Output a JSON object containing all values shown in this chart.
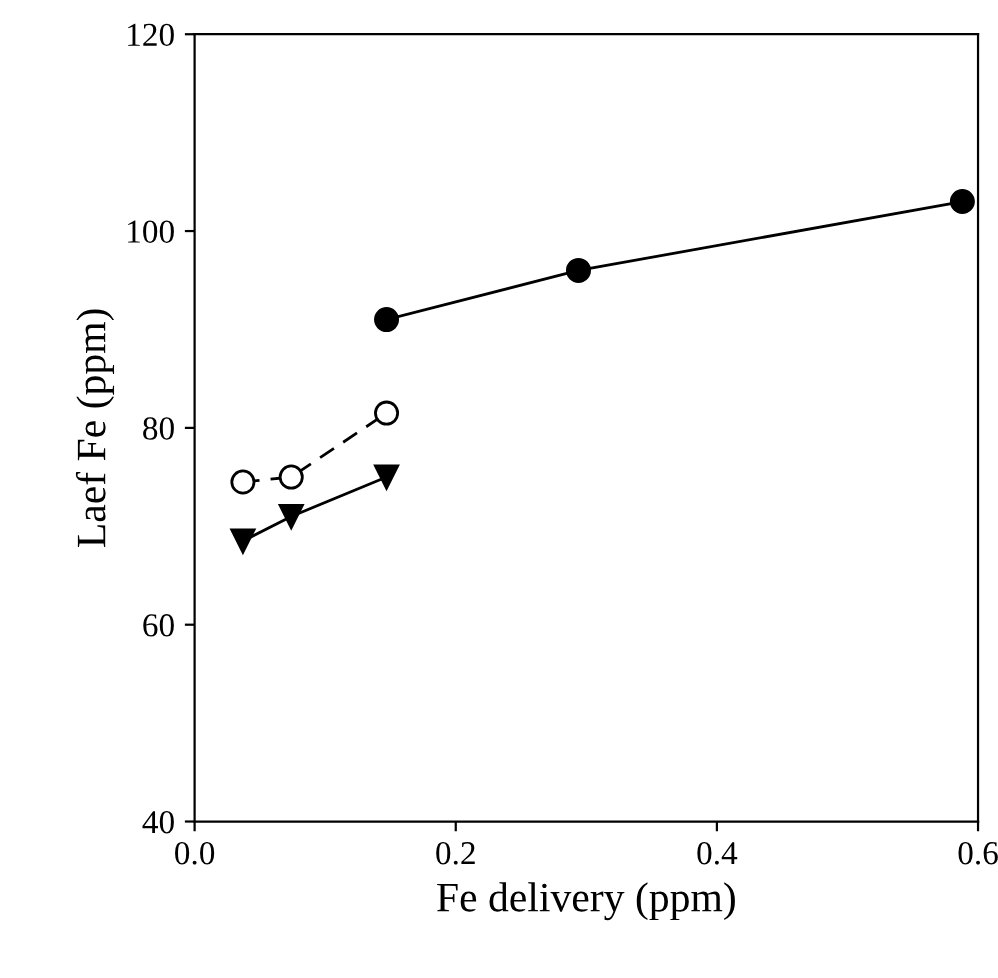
{
  "chart_data": {
    "type": "line",
    "xlabel": "Fe delivery (ppm)",
    "ylabel": "Laef Fe (ppm)",
    "xlim": [
      0,
      0.6
    ],
    "xticks": [
      {
        "value": 0,
        "label": "0.0"
      },
      0.2,
      0.4,
      0.6
    ],
    "ylim": [
      40,
      120
    ],
    "yticks": [
      40,
      60,
      80,
      100,
      120
    ],
    "grid": false,
    "legend": false,
    "series": [
      {
        "x": [
          0.147,
          0.294,
          0.588
        ],
        "values": [
          91,
          96,
          103
        ],
        "color": "#000000",
        "marker": "circle",
        "line_style": "solid"
      },
      {
        "x": [
          0.037,
          0.074,
          0.147
        ],
        "values": [
          74.5,
          75,
          81.5
        ],
        "color": "#ffffff",
        "marker": "circle",
        "line_style": "dashed"
      },
      {
        "x": [
          0.037,
          0.074,
          0.147
        ],
        "values": [
          68.5,
          71,
          75
        ],
        "color": "#000000",
        "marker": "triangle",
        "line_style": "solid"
      }
    ]
  }
}
